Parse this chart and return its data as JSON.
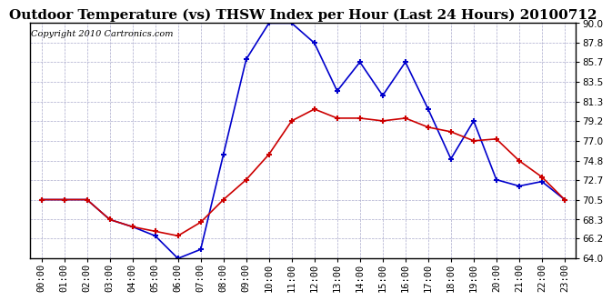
{
  "title": "Outdoor Temperature (vs) THSW Index per Hour (Last 24 Hours) 20100712",
  "copyright": "Copyright 2010 Cartronics.com",
  "hours": [
    "00:00",
    "01:00",
    "02:00",
    "03:00",
    "04:00",
    "05:00",
    "06:00",
    "07:00",
    "08:00",
    "09:00",
    "10:00",
    "11:00",
    "12:00",
    "13:00",
    "14:00",
    "15:00",
    "16:00",
    "17:00",
    "18:00",
    "19:00",
    "20:00",
    "21:00",
    "22:00",
    "23:00"
  ],
  "temp": [
    70.5,
    70.5,
    70.5,
    68.3,
    67.5,
    67.0,
    66.5,
    68.0,
    70.5,
    72.7,
    75.5,
    79.2,
    80.5,
    79.5,
    79.5,
    79.2,
    79.5,
    78.5,
    78.0,
    77.0,
    77.2,
    74.8,
    73.0,
    70.5
  ],
  "thsw": [
    70.5,
    70.5,
    70.5,
    68.3,
    67.5,
    66.5,
    64.0,
    65.0,
    75.5,
    86.0,
    90.0,
    90.0,
    87.8,
    82.5,
    85.7,
    82.0,
    85.7,
    80.5,
    75.0,
    79.2,
    72.7,
    72.0,
    72.5,
    70.5
  ],
  "temp_color": "#cc0000",
  "thsw_color": "#0000cc",
  "bg_color": "#ffffff",
  "grid_color": "#aaaacc",
  "ymin": 64.0,
  "ymax": 90.0,
  "yticks": [
    64.0,
    66.2,
    68.3,
    70.5,
    72.7,
    74.8,
    77.0,
    79.2,
    81.3,
    83.5,
    85.7,
    87.8,
    90.0
  ],
  "title_fontsize": 11,
  "copyright_fontsize": 7,
  "tick_fontsize": 7.5,
  "marker": "+",
  "markersize": 5,
  "markeredgewidth": 1.5,
  "linewidth": 1.2
}
